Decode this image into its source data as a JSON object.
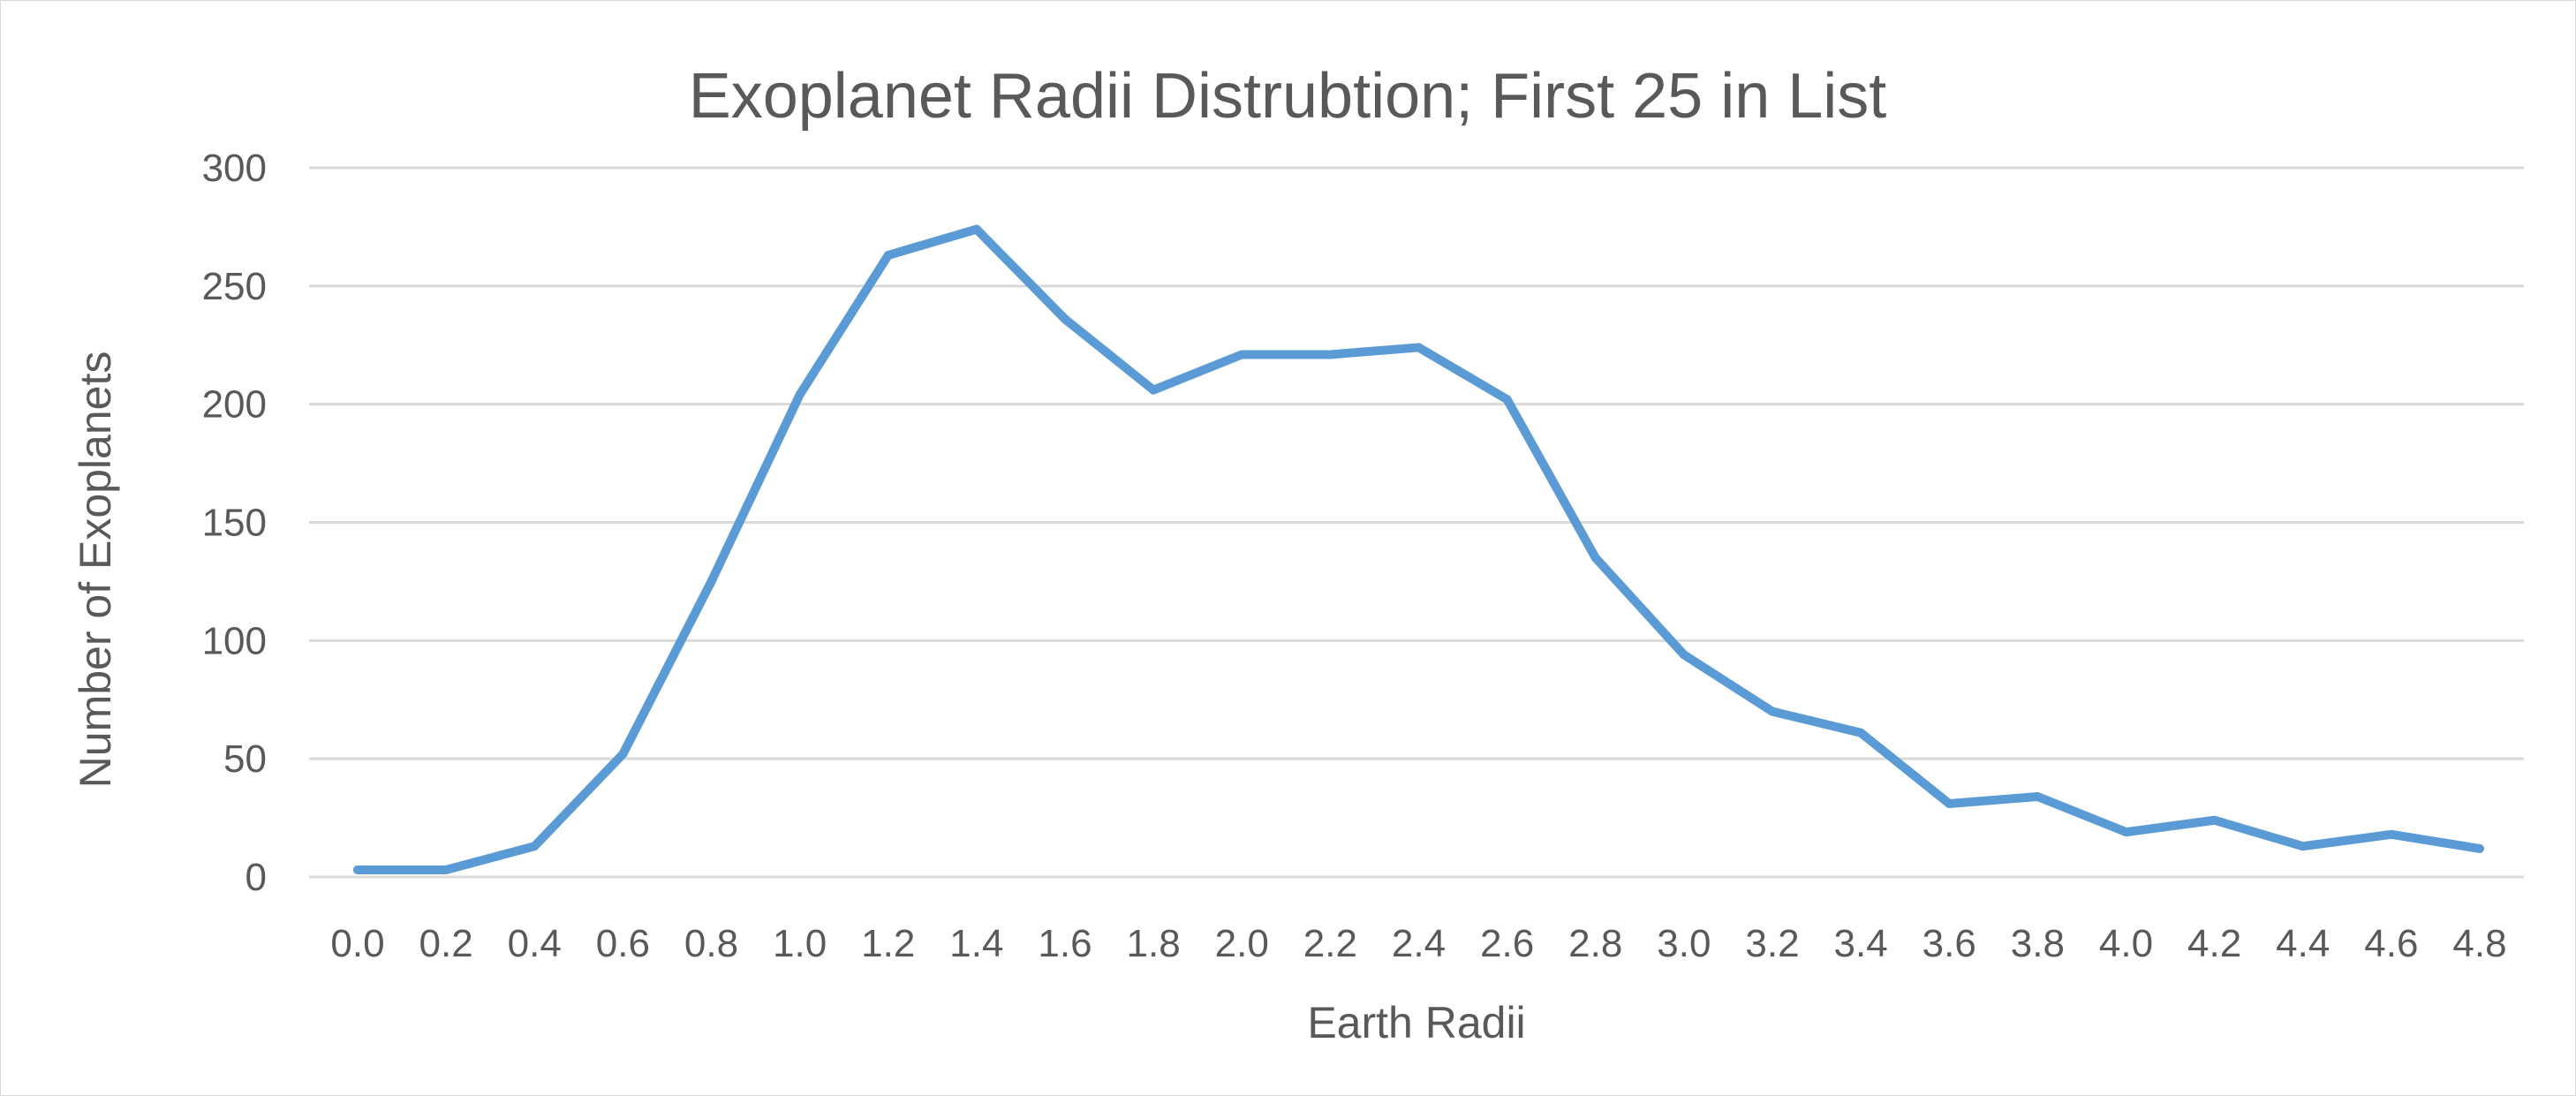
{
  "chart_data": {
    "type": "line",
    "title": "Exoplanet Radii Distrubtion; First 25 in List",
    "xlabel": "Earth Radii",
    "ylabel": "Number of Exoplanets",
    "categories": [
      "0.0",
      "0.2",
      "0.4",
      "0.6",
      "0.8",
      "1.0",
      "1.2",
      "1.4",
      "1.6",
      "1.8",
      "2.0",
      "2.2",
      "2.4",
      "2.6",
      "2.8",
      "3.0",
      "3.2",
      "3.4",
      "3.6",
      "3.8",
      "4.0",
      "4.2",
      "4.4",
      "4.6",
      "4.8"
    ],
    "values": [
      3,
      3,
      13,
      52,
      125,
      204,
      263,
      274,
      236,
      206,
      221,
      221,
      224,
      202,
      135,
      94,
      70,
      61,
      31,
      34,
      19,
      24,
      13,
      18,
      12
    ],
    "ylim": [
      0,
      300
    ],
    "yticks": [
      "0",
      "50",
      "100",
      "150",
      "200",
      "250",
      "300"
    ],
    "grid": true,
    "legend": "none",
    "line_color": "#5b9bd5"
  }
}
